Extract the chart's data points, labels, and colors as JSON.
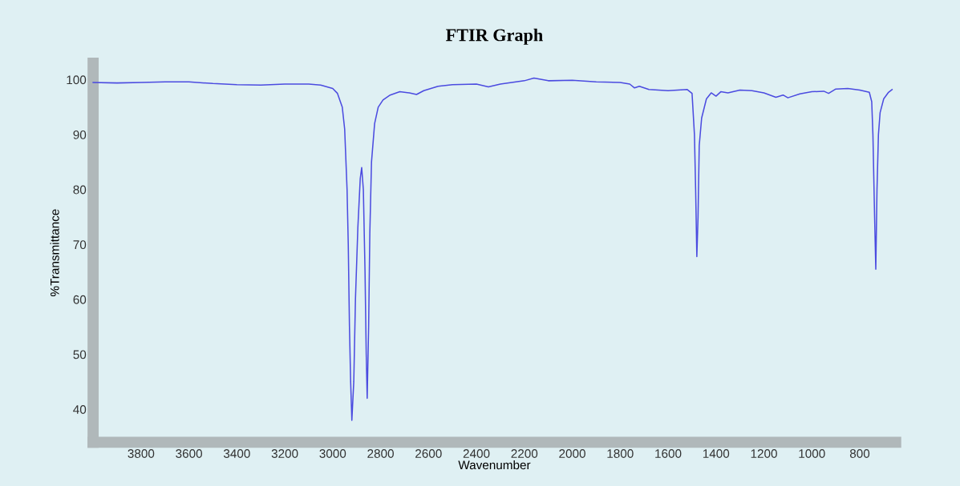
{
  "chart_data": {
    "type": "line",
    "title": "FTIR Graph",
    "xlabel": "Wavenumber",
    "ylabel": "%Transmittance",
    "xlim": [
      4000,
      650
    ],
    "xticks": [
      3800,
      3600,
      3400,
      3200,
      3000,
      2800,
      2600,
      2400,
      2200,
      2000,
      1800,
      1600,
      1400,
      1200,
      1000,
      800
    ],
    "ylim": [
      34,
      103
    ],
    "yticks": [
      40,
      50,
      60,
      70,
      80,
      90,
      100
    ],
    "grid": false,
    "legend": false,
    "series": [
      {
        "color": "#4b4be0",
        "x": [
          4000,
          3900,
          3800,
          3700,
          3600,
          3500,
          3400,
          3300,
          3200,
          3100,
          3050,
          3000,
          2980,
          2960,
          2950,
          2940,
          2935,
          2930,
          2925,
          2920,
          2912,
          2905,
          2895,
          2885,
          2879,
          2872,
          2865,
          2860,
          2856,
          2850,
          2845,
          2838,
          2825,
          2810,
          2790,
          2760,
          2720,
          2680,
          2650,
          2620,
          2560,
          2500,
          2400,
          2350,
          2300,
          2200,
          2160,
          2100,
          2000,
          1900,
          1800,
          1760,
          1740,
          1720,
          1680,
          1600,
          1520,
          1500,
          1490,
          1485,
          1480,
          1475,
          1470,
          1460,
          1440,
          1420,
          1400,
          1380,
          1350,
          1300,
          1250,
          1200,
          1150,
          1120,
          1100,
          1050,
          1000,
          950,
          930,
          900,
          850,
          800,
          760,
          750,
          745,
          738,
          733,
          728,
          722,
          715,
          700,
          680,
          665
        ],
        "values": [
          99.5,
          99.4,
          99.5,
          99.6,
          99.6,
          99.3,
          99.1,
          99.0,
          99.2,
          99.2,
          99.0,
          98.4,
          97.5,
          95,
          91,
          80,
          70,
          55,
          45,
          38,
          45,
          60,
          73,
          82,
          84,
          80,
          65,
          50,
          42,
          55,
          72,
          85,
          92,
          95,
          96.3,
          97.2,
          97.8,
          97.6,
          97.3,
          98,
          98.8,
          99.1,
          99.2,
          98.7,
          99.2,
          99.8,
          100.3,
          99.8,
          99.9,
          99.6,
          99.5,
          99.2,
          98.5,
          98.8,
          98.2,
          98.0,
          98.2,
          97.5,
          90,
          80,
          67.8,
          75,
          88,
          93,
          96.5,
          97.6,
          97.0,
          97.8,
          97.6,
          98.1,
          98.0,
          97.6,
          96.8,
          97.2,
          96.7,
          97.4,
          97.8,
          97.9,
          97.5,
          98.3,
          98.4,
          98.1,
          97.7,
          96,
          90,
          75,
          65.5,
          80,
          90,
          94,
          96.5,
          97.7,
          98.2
        ]
      }
    ]
  }
}
